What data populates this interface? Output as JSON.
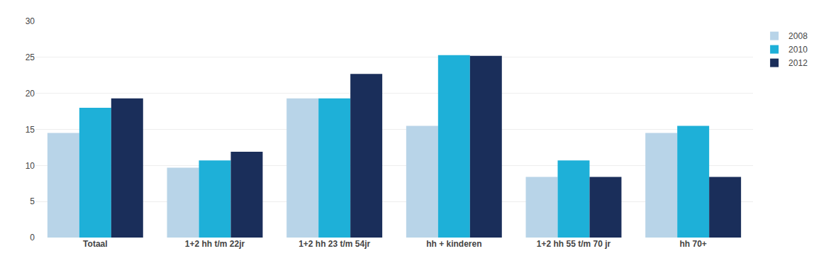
{
  "chart_data": {
    "type": "bar",
    "categories": [
      "Totaal",
      "1+2 hh t/m 22jr",
      "1+2 hh 23 t/m 54jr",
      "hh + kinderen",
      "1+2 hh 55 t/m 70 jr",
      "hh 70+"
    ],
    "series": [
      {
        "name": "2008",
        "color": "#b8d4e8",
        "values": [
          14.5,
          9.7,
          19.3,
          15.5,
          8.4,
          14.5
        ]
      },
      {
        "name": "2010",
        "color": "#1eb0d8",
        "values": [
          18.0,
          10.7,
          19.3,
          25.3,
          10.7,
          15.5
        ]
      },
      {
        "name": "2012",
        "color": "#1a2e5a",
        "values": [
          19.3,
          11.9,
          22.7,
          25.2,
          8.4,
          8.4
        ]
      }
    ],
    "ylim": [
      0,
      30
    ],
    "yticks": [
      0,
      5,
      10,
      15,
      20,
      25,
      30
    ],
    "grid": true,
    "legend": "right"
  }
}
